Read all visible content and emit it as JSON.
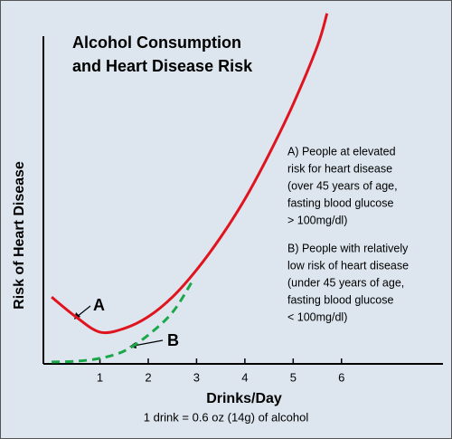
{
  "chart_data": {
    "type": "line",
    "title": [
      "Alcohol Consumption",
      "and Heart Disease Risk"
    ],
    "x_label": "Drinks/Day",
    "y_label": "Risk of Heart Disease",
    "footnote": "1 drink = 0.6 oz (14g) of alcohol",
    "xlim": [
      -0.17,
      8.1
    ],
    "ylim": [
      0,
      110
    ],
    "xticks": [
      1,
      2,
      3,
      4,
      5,
      6
    ],
    "series": [
      {
        "name": "A",
        "color": "#e0141e",
        "dash": false,
        "x": [
          0,
          0.5,
          1,
          1.5,
          2,
          2.5,
          3,
          3.5,
          4,
          4.5,
          5,
          5.5,
          5.7
        ],
        "values": [
          20.4,
          14.4,
          9.7,
          10.8,
          14.4,
          20.4,
          28.7,
          38.7,
          50.3,
          64,
          79.3,
          97,
          107
        ]
      },
      {
        "name": "B",
        "color": "#1aa84a",
        "dash": true,
        "x": [
          0,
          0.5,
          1,
          1.5,
          2,
          2.5,
          2.9
        ],
        "values": [
          0.6,
          0.8,
          1.7,
          3.9,
          8.8,
          15.7,
          24.9
        ]
      }
    ],
    "annotations": [
      [
        "A) People at elevated",
        "risk for heart disease",
        "(over 45 years of age,",
        "fasting blood glucose",
        "> 100mg/dl)"
      ],
      [
        "B) People with relatively",
        "low risk of heart disease",
        "(under 45 years of age,",
        "fasting blood glucose",
        "< 100mg/dl)"
      ]
    ]
  }
}
